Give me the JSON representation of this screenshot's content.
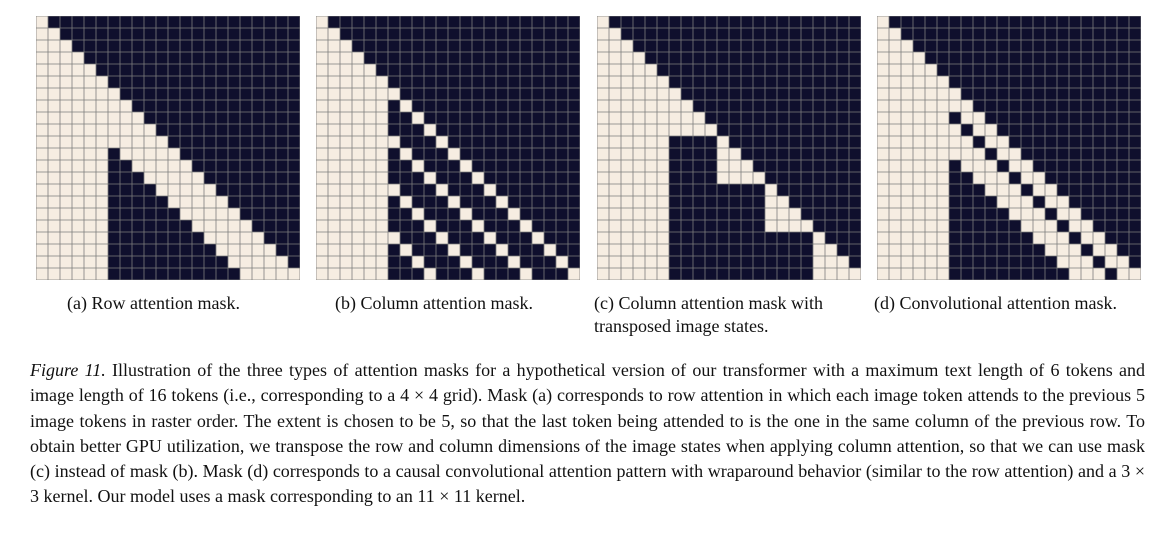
{
  "figure": {
    "panels": [
      {
        "id": "a",
        "caption": "(a) Row attention mask.",
        "mask": "row"
      },
      {
        "id": "b",
        "caption": "(b) Column attention mask.",
        "mask": "column"
      },
      {
        "id": "c",
        "caption_line1": "(c) Column attention mask with",
        "caption_line2": "transposed image states.",
        "mask": "column_transposed"
      },
      {
        "id": "d",
        "caption": "(d) Convolutional attention mask.",
        "mask": "conv"
      }
    ],
    "matrix_size": 22,
    "text_length": 6,
    "image_length": 16,
    "colors": {
      "attend": "#f6ede2",
      "masked": "#0f0f2d",
      "grid": "#7d7d7d"
    }
  },
  "caption": {
    "label": "Figure 11.",
    "text": " Illustration of the three types of attention masks for a hypothetical version of our transformer with a maximum text length of 6 tokens and image length of 16 tokens (i.e., corresponding to a 4 × 4 grid). Mask (a) corresponds to row attention in which each image token attends to the previous 5 image tokens in raster order. The extent is chosen to be 5, so that the last token being attended to is the one in the same column of the previous row. To obtain better GPU utilization, we transpose the row and column dimensions of the image states when applying column attention, so that we can use mask (c) instead of mask (b). Mask (d) corresponds to a causal convolutional attention pattern with wraparound behavior (similar to the row attention) and a 3 × 3 kernel. Our model uses a mask corresponding to an 11 × 11 kernel."
  }
}
